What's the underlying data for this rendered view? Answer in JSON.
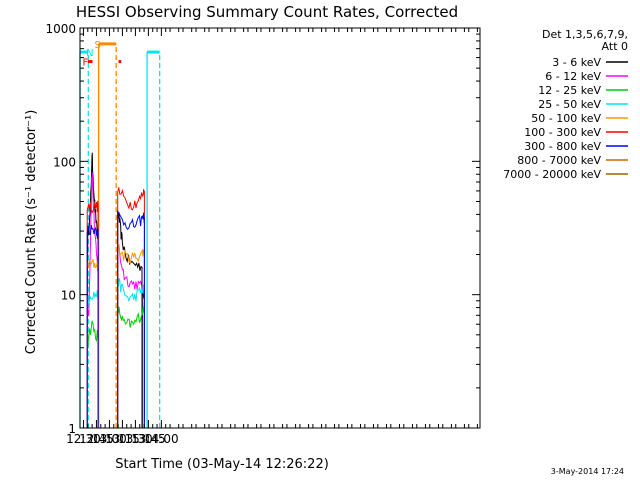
{
  "chart_data": {
    "type": "line",
    "title": "HESSI Observing Summary Count Rates, Corrected",
    "xlabel": "Start Time (03-May-14 12:26:22)",
    "ylabel": "Corrected Count Rate (s⁻¹ detector⁻¹)",
    "y_scale": "log",
    "ylim": [
      1,
      1000
    ],
    "xlim_minutes": [
      746,
      1208
    ],
    "x_ticks": [
      {
        "label": "12:30",
        "minutes": 750
      },
      {
        "label": "12:45",
        "minutes": 765
      },
      {
        "label": "13:00",
        "minutes": 780
      },
      {
        "label": "13:15",
        "minutes": 795
      },
      {
        "label": "13:30",
        "minutes": 810
      },
      {
        "label": "13:45",
        "minutes": 825
      },
      {
        "label": "14:00",
        "minutes": 840
      }
    ],
    "y_ticks": [
      {
        "label": "1",
        "value": 1
      },
      {
        "label": "10",
        "value": 10
      },
      {
        "label": "100",
        "value": 100
      },
      {
        "label": "1000",
        "value": 1000
      }
    ],
    "legend": {
      "header": [
        "Det 1,3,5,6,7,9,",
        "Att 0"
      ],
      "position": "top-right, outside plot"
    },
    "series": [
      {
        "name": "3 - 6 keV",
        "color": "#000000",
        "segments": [
          [
            [
              754.3,
              5
            ],
            [
              755,
              30
            ],
            [
              756,
              32
            ],
            [
              757,
              35
            ],
            [
              758,
              45
            ],
            [
              759,
              70
            ],
            [
              759.6,
              100
            ],
            [
              760.2,
              105
            ],
            [
              761,
              80
            ],
            [
              762,
              60
            ],
            [
              763,
              48
            ],
            [
              764,
              40
            ],
            [
              765,
              33
            ],
            [
              766,
              28
            ],
            [
              766.9,
              25
            ]
          ],
          [
            [
              789.6,
              42
            ],
            [
              791,
              38
            ],
            [
              792,
              34
            ],
            [
              793,
              30
            ],
            [
              794,
              27
            ],
            [
              795,
              25
            ],
            [
              797,
              22
            ],
            [
              799,
              20
            ],
            [
              802,
              18
            ],
            [
              806,
              17
            ],
            [
              810,
              17
            ],
            [
              814,
              16.5
            ],
            [
              817.6,
              16
            ]
          ],
          [
            [
              818,
              11
            ],
            [
              819.6,
              10
            ],
            [
              820.4,
              9
            ]
          ]
        ]
      },
      {
        "name": "6 - 12 keV",
        "color": "#ff00ff",
        "segments": [
          [
            [
              754.3,
              7
            ],
            [
              755,
              7.5
            ],
            [
              756,
              7.5
            ],
            [
              757,
              12
            ],
            [
              758,
              25
            ],
            [
              759,
              50
            ],
            [
              759.6,
              75
            ],
            [
              760.2,
              78
            ],
            [
              761,
              55
            ],
            [
              762,
              40
            ],
            [
              763,
              30
            ],
            [
              764,
              24
            ],
            [
              765,
              20
            ],
            [
              766,
              17
            ],
            [
              766.9,
              15
            ]
          ],
          [
            [
              789.6,
              25
            ],
            [
              791,
              22
            ],
            [
              793,
              18
            ],
            [
              795,
              16
            ],
            [
              797,
              14
            ],
            [
              800,
              13
            ],
            [
              804,
              12.5
            ],
            [
              808,
              12
            ],
            [
              812,
              12
            ],
            [
              816,
              11.5
            ],
            [
              818,
              11
            ],
            [
              819.6,
              11
            ],
            [
              820.4,
              10
            ]
          ]
        ]
      },
      {
        "name": "12 - 25 keV",
        "color": "#00cc00",
        "segments": [
          [
            [
              754.3,
              3.5
            ],
            [
              755,
              4.5
            ],
            [
              756,
              5
            ],
            [
              758,
              5.5
            ],
            [
              760,
              6
            ],
            [
              762,
              5.5
            ],
            [
              764,
              5
            ],
            [
              766,
              5
            ],
            [
              766.9,
              4.5
            ]
          ],
          [
            [
              789.6,
              8
            ],
            [
              791,
              7.5
            ],
            [
              793,
              7
            ],
            [
              795,
              6.5
            ],
            [
              797,
              6
            ],
            [
              800,
              6
            ],
            [
              804,
              6
            ],
            [
              808,
              6
            ],
            [
              812,
              6.5
            ],
            [
              816,
              7
            ],
            [
              818,
              7.5
            ],
            [
              819.6,
              8
            ],
            [
              820.4,
              8
            ]
          ]
        ]
      },
      {
        "name": "25 - 50 keV",
        "color": "#00e5ee",
        "segments": [
          [
            [
              754.3,
              9.5
            ],
            [
              756,
              9.5
            ],
            [
              758,
              10
            ],
            [
              760,
              10
            ],
            [
              762,
              10
            ],
            [
              764,
              10
            ],
            [
              766,
              10
            ],
            [
              766.9,
              9.5
            ]
          ],
          [
            [
              789.6,
              13
            ],
            [
              791,
              12
            ],
            [
              793,
              11.5
            ],
            [
              795,
              11
            ],
            [
              798,
              10
            ],
            [
              801,
              9.5
            ],
            [
              804,
              9.5
            ],
            [
              808,
              9.5
            ],
            [
              812,
              10
            ],
            [
              816,
              10.5
            ],
            [
              818,
              11
            ],
            [
              819.6,
              11
            ],
            [
              820.4,
              11
            ]
          ]
        ]
      },
      {
        "name": "50 - 100 keV",
        "color": "#ff9900",
        "segments": [
          [
            [
              754.3,
              17
            ],
            [
              756,
              17
            ],
            [
              758,
              17
            ],
            [
              760,
              17
            ],
            [
              762,
              17
            ],
            [
              764,
              17
            ],
            [
              766,
              17
            ],
            [
              766.9,
              17
            ]
          ],
          [
            [
              789.6,
              22
            ],
            [
              792,
              21
            ],
            [
              795,
              20
            ],
            [
              798,
              19.5
            ],
            [
              801,
              19
            ],
            [
              804,
              19
            ],
            [
              808,
              19
            ],
            [
              812,
              19.5
            ],
            [
              816,
              20
            ],
            [
              818,
              20.5
            ],
            [
              819.6,
              21
            ],
            [
              820.4,
              21
            ]
          ]
        ]
      },
      {
        "name": "100 - 300 keV",
        "color": "#ff0000",
        "segments": [
          [
            [
              754.3,
              46
            ],
            [
              756,
              46
            ],
            [
              758,
              46
            ],
            [
              760,
              45
            ],
            [
              762,
              45
            ],
            [
              764,
              46
            ],
            [
              766,
              46
            ],
            [
              766.9,
              46
            ]
          ],
          [
            [
              789.6,
              62
            ],
            [
              792,
              58
            ],
            [
              795,
              55
            ],
            [
              798,
              52
            ],
            [
              801,
              50
            ],
            [
              804,
              48
            ],
            [
              808,
              48
            ],
            [
              812,
              50
            ],
            [
              816,
              53
            ],
            [
              818,
              56
            ],
            [
              819.6,
              58
            ],
            [
              820.4,
              60
            ]
          ]
        ]
      },
      {
        "name": "300 - 800 keV",
        "color": "#0000ff",
        "segments": [
          [
            [
              754.3,
              31
            ],
            [
              756,
              31
            ],
            [
              758,
              31
            ],
            [
              760,
              31
            ],
            [
              762,
              31
            ],
            [
              764,
              31
            ],
            [
              766,
              31
            ],
            [
              766.9,
              31
            ]
          ],
          [
            [
              789.6,
              40
            ],
            [
              792,
              38
            ],
            [
              795,
              36
            ],
            [
              798,
              35
            ],
            [
              801,
              34
            ],
            [
              804,
              33
            ],
            [
              808,
              33
            ],
            [
              812,
              34
            ],
            [
              816,
              36
            ],
            [
              818,
              37
            ],
            [
              819.6,
              38
            ],
            [
              820.4,
              38
            ]
          ]
        ]
      },
      {
        "name": "800 - 7000 keV",
        "color": "#cc6600",
        "segments": []
      },
      {
        "name": "7000 - 20000 keV",
        "color": "#996600",
        "segments": []
      }
    ],
    "flag_bars": [
      {
        "label": "F",
        "color": "#ff0000",
        "value": 560,
        "label_minutes": 752.2,
        "segments": [
          [
            755,
            760.4
          ],
          [
            790.5,
            793.6
          ]
        ]
      },
      {
        "label": "N",
        "color": "#00e5ee",
        "value": 660,
        "label_minutes": 757.4,
        "segments": [
          [
            746,
            755.6
          ],
          [
            823.5,
            838
          ]
        ]
      },
      {
        "label": "S",
        "color": "#ff8800",
        "value": 760,
        "label_minutes": 766.4,
        "segments": [
          [
            767.5,
            787.8
          ]
        ]
      }
    ],
    "vertical_markers": [
      {
        "minutes": 746,
        "color": "#00e5ee",
        "style": "solid",
        "from": 1,
        "to": 660
      },
      {
        "minutes": 755.6,
        "color": "#00e5ee",
        "style": "dashed",
        "from": 1,
        "to": 660
      },
      {
        "minutes": 767.5,
        "color": "#ff8800",
        "style": "solid",
        "from": 1,
        "to": 760
      },
      {
        "minutes": 787.8,
        "color": "#ff8800",
        "style": "dashed",
        "from": 1,
        "to": 760
      },
      {
        "minutes": 823.5,
        "color": "#00e5ee",
        "style": "solid",
        "from": 1,
        "to": 660
      },
      {
        "minutes": 838,
        "color": "#00e5ee",
        "style": "dashed",
        "from": 1,
        "to": 660
      }
    ],
    "grid": false,
    "footer_date": "3-May-2014 17:24"
  }
}
